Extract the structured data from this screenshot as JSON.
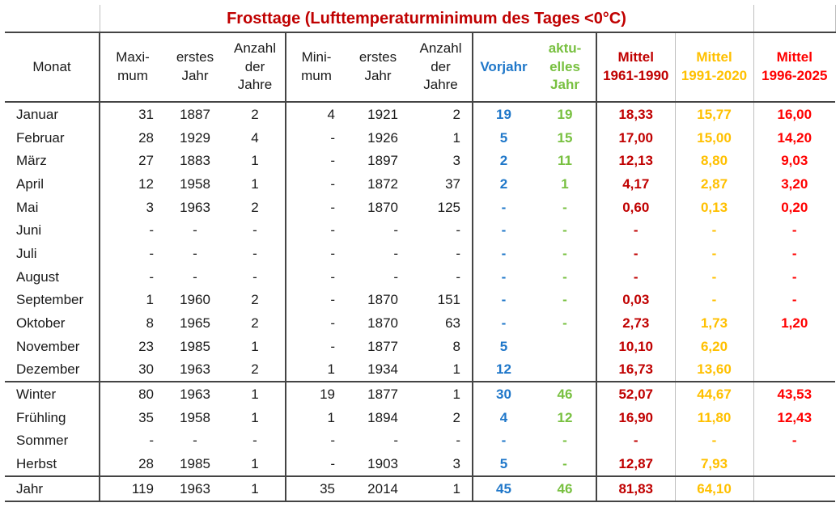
{
  "title": "Frosttage (Lufttemperaturminimum des Tages <0°C)",
  "colors": {
    "title": "#c00000",
    "vorjahr": "#1f77c9",
    "aktuell": "#78c040",
    "mittel_1961": "#c00000",
    "mittel_1991": "#ffc000",
    "mittel_1996": "#ff0000"
  },
  "headers": [
    {
      "key": "monat",
      "lines": [
        "Monat"
      ],
      "bold": false,
      "color": "dark"
    },
    {
      "key": "maximum",
      "lines": [
        "Maxi-",
        "mum"
      ],
      "bold": false,
      "color": "dark"
    },
    {
      "key": "max_jahr",
      "lines": [
        "erstes",
        "Jahr"
      ],
      "bold": false,
      "color": "dark"
    },
    {
      "key": "max_anzahl",
      "lines": [
        "Anzahl",
        "der",
        "Jahre"
      ],
      "bold": false,
      "color": "dark"
    },
    {
      "key": "minimum",
      "lines": [
        "Mini-",
        "mum"
      ],
      "bold": false,
      "color": "dark"
    },
    {
      "key": "min_jahr",
      "lines": [
        "erstes",
        "Jahr"
      ],
      "bold": false,
      "color": "dark"
    },
    {
      "key": "min_anzahl",
      "lines": [
        "Anzahl",
        "der",
        "Jahre"
      ],
      "bold": false,
      "color": "dark"
    },
    {
      "key": "vorjahr",
      "lines": [
        "Vorjahr"
      ],
      "bold": true,
      "color": "blue"
    },
    {
      "key": "aktuell",
      "lines": [
        "aktu-",
        "elles",
        "Jahr"
      ],
      "bold": true,
      "color": "green"
    },
    {
      "key": "m1961",
      "lines": [
        "Mittel",
        "1961-1990"
      ],
      "bold": true,
      "color": "red"
    },
    {
      "key": "m1991",
      "lines": [
        "Mittel",
        "1991-2020"
      ],
      "bold": true,
      "color": "gold"
    },
    {
      "key": "m1996",
      "lines": [
        "Mittel",
        "1996-2025"
      ],
      "bold": true,
      "color": "brightred"
    }
  ],
  "rows": [
    [
      "Januar",
      "31",
      "1887",
      "2",
      "4",
      "1921",
      "2",
      "19",
      "19",
      "18,33",
      "15,77",
      "16,00"
    ],
    [
      "Februar",
      "28",
      "1929",
      "4",
      "-",
      "1926",
      "1",
      "5",
      "15",
      "17,00",
      "15,00",
      "14,20"
    ],
    [
      "März",
      "27",
      "1883",
      "1",
      "-",
      "1897",
      "3",
      "2",
      "11",
      "12,13",
      "8,80",
      "9,03"
    ],
    [
      "April",
      "12",
      "1958",
      "1",
      "-",
      "1872",
      "37",
      "2",
      "1",
      "4,17",
      "2,87",
      "3,20"
    ],
    [
      "Mai",
      "3",
      "1963",
      "2",
      "-",
      "1870",
      "125",
      "-",
      "-",
      "0,60",
      "0,13",
      "0,20"
    ],
    [
      "Juni",
      "-",
      "-",
      "-",
      "-",
      "-",
      "-",
      "-",
      "-",
      "-",
      "-",
      "-"
    ],
    [
      "Juli",
      "-",
      "-",
      "-",
      "-",
      "-",
      "-",
      "-",
      "-",
      "-",
      "-",
      "-"
    ],
    [
      "August",
      "-",
      "-",
      "-",
      "-",
      "-",
      "-",
      "-",
      "-",
      "-",
      "-",
      "-"
    ],
    [
      "September",
      "1",
      "1960",
      "2",
      "-",
      "1870",
      "151",
      "-",
      "-",
      "0,03",
      "-",
      "-"
    ],
    [
      "Oktober",
      "8",
      "1965",
      "2",
      "-",
      "1870",
      "63",
      "-",
      "-",
      "2,73",
      "1,73",
      "1,20"
    ],
    [
      "November",
      "23",
      "1985",
      "1",
      "-",
      "1877",
      "8",
      "5",
      "",
      "10,10",
      "6,20",
      ""
    ],
    [
      "Dezember",
      "30",
      "1963",
      "2",
      "1",
      "1934",
      "1",
      "12",
      "",
      "16,73",
      "13,60",
      ""
    ],
    [
      "Winter",
      "80",
      "1963",
      "1",
      "19",
      "1877",
      "1",
      "30",
      "46",
      "52,07",
      "44,67",
      "43,53"
    ],
    [
      "Frühling",
      "35",
      "1958",
      "1",
      "1",
      "1894",
      "2",
      "4",
      "12",
      "16,90",
      "11,80",
      "12,43"
    ],
    [
      "Sommer",
      "-",
      "-",
      "-",
      "-",
      "-",
      "-",
      "-",
      "-",
      "-",
      "-",
      "-"
    ],
    [
      "Herbst",
      "28",
      "1985",
      "1",
      "-",
      "1903",
      "3",
      "5",
      "-",
      "12,87",
      "7,93",
      ""
    ],
    [
      "Jahr",
      "119",
      "1963",
      "1",
      "35",
      "2014",
      "1",
      "45",
      "46",
      "81,83",
      "64,10",
      ""
    ]
  ]
}
